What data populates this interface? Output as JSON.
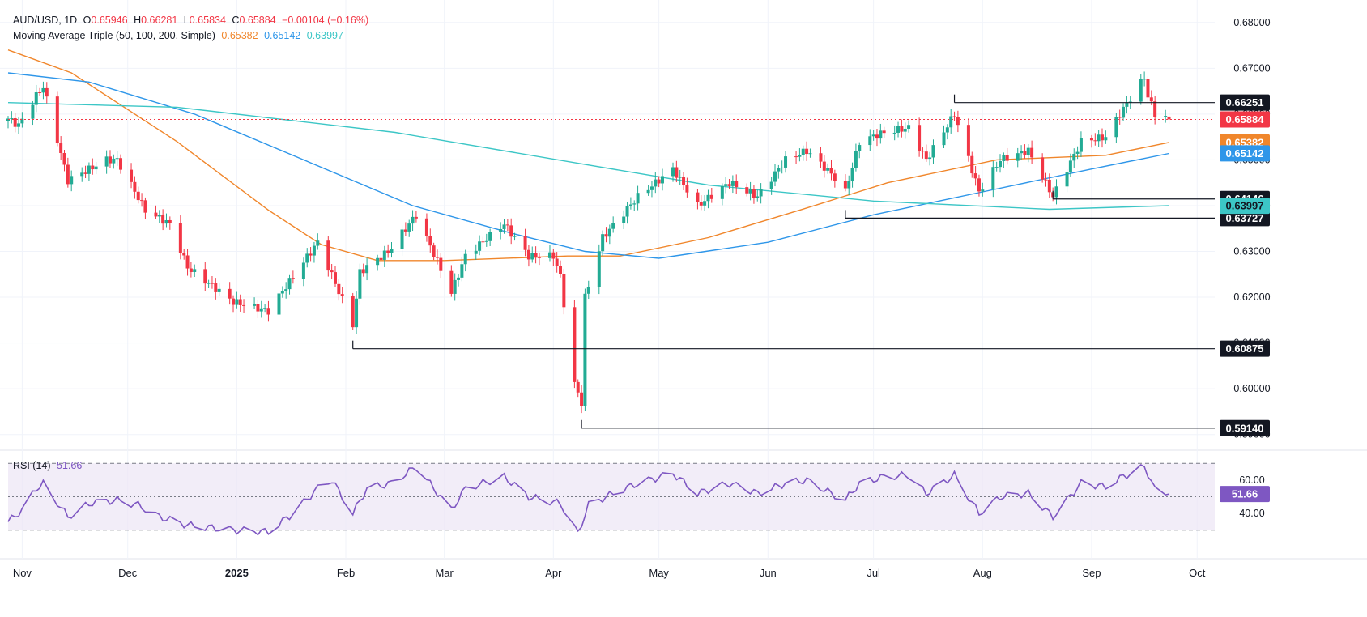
{
  "header": {
    "symbol": "AUD/USD, 1D",
    "ohlc": {
      "o_label": "O",
      "o": "0.65946",
      "h_label": "H",
      "h": "0.66281",
      "l_label": "L",
      "l": "0.65834",
      "c_label": "C",
      "c": "0.65884",
      "change": "−0.00104 (−0.16%)"
    },
    "ma_title": "Moving Average Triple (50, 100, 200, Simple)",
    "ma_values": [
      "0.65382",
      "0.65142",
      "0.63997"
    ],
    "rsi_title": "RSI (14)",
    "rsi_value": "51.66"
  },
  "colors": {
    "up": "#22ab94",
    "down": "#f23645",
    "ma50": "#f0862b",
    "ma100": "#2e96e9",
    "ma200": "#3cc6c6",
    "rsi": "#7e57c2",
    "rsi_band": "#ede7f6",
    "grid": "#f0f3fa",
    "axis_text": "#131722",
    "level": "#131722",
    "last_price": "#f23645"
  },
  "chart_data": [
    {
      "type": "candlestick",
      "title": "AUD/USD, 1D",
      "x_range": [
        "2024-10-28",
        "2025-10-06"
      ],
      "y_range": [
        0.588,
        0.6835
      ],
      "x_ticks": [
        {
          "date": "2024-11-01",
          "label": "Nov"
        },
        {
          "date": "2024-12-01",
          "label": "Dec"
        },
        {
          "date": "2025-01-01",
          "label": "2025"
        },
        {
          "date": "2025-02-01",
          "label": "Feb"
        },
        {
          "date": "2025-03-01",
          "label": "Mar"
        },
        {
          "date": "2025-04-01",
          "label": "Apr"
        },
        {
          "date": "2025-05-01",
          "label": "May"
        },
        {
          "date": "2025-06-01",
          "label": "Jun"
        },
        {
          "date": "2025-07-01",
          "label": "Jul"
        },
        {
          "date": "2025-08-01",
          "label": "Aug"
        },
        {
          "date": "2025-09-01",
          "label": "Sep"
        },
        {
          "date": "2025-10-01",
          "label": "Oct"
        }
      ],
      "y_ticks": [
        "0.68000",
        "0.67000",
        "0.66000",
        "0.65000",
        "0.64000",
        "0.63000",
        "0.62000",
        "0.61000",
        "0.60000",
        "0.59000"
      ],
      "anchors": [
        [
          "2024-10-28",
          0.659
        ],
        [
          "2024-10-31",
          0.6575
        ],
        [
          "2024-11-05",
          0.664
        ],
        [
          "2024-11-07",
          0.666
        ],
        [
          "2024-11-14",
          0.6455
        ],
        [
          "2024-11-25",
          0.65
        ],
        [
          "2024-11-28",
          0.65
        ],
        [
          "2024-12-06",
          0.639
        ],
        [
          "2024-12-13",
          0.636
        ],
        [
          "2024-12-18",
          0.6265
        ],
        [
          "2024-12-31",
          0.619
        ],
        [
          "2025-01-10",
          0.617
        ],
        [
          "2025-01-24",
          0.632
        ],
        [
          "2025-02-03",
          0.614
        ],
        [
          "2025-02-05",
          0.6255
        ],
        [
          "2025-02-13",
          0.63
        ],
        [
          "2025-02-19",
          0.636
        ],
        [
          "2025-02-21",
          0.638
        ],
        [
          "2025-03-03",
          0.621
        ],
        [
          "2025-03-07",
          0.629
        ],
        [
          "2025-03-18",
          0.636
        ],
        [
          "2025-03-25",
          0.629
        ],
        [
          "2025-04-01",
          0.629
        ],
        [
          "2025-04-03",
          0.6245
        ],
        [
          "2025-04-07",
          0.601
        ],
        [
          "2025-04-09",
          0.597
        ],
        [
          "2025-04-10",
          0.62
        ],
        [
          "2025-04-15",
          0.633
        ],
        [
          "2025-04-25",
          0.642
        ],
        [
          "2025-05-05",
          0.648
        ],
        [
          "2025-05-12",
          0.64
        ],
        [
          "2025-05-21",
          0.645
        ],
        [
          "2025-05-29",
          0.642
        ],
        [
          "2025-06-06",
          0.65
        ],
        [
          "2025-06-12",
          0.652
        ],
        [
          "2025-06-19",
          0.647
        ],
        [
          "2025-06-23",
          0.643
        ],
        [
          "2025-06-27",
          0.654
        ],
        [
          "2025-07-04",
          0.656
        ],
        [
          "2025-07-11",
          0.657
        ],
        [
          "2025-07-16",
          0.65
        ],
        [
          "2025-07-24",
          0.66
        ],
        [
          "2025-07-31",
          0.643
        ],
        [
          "2025-08-06",
          0.65
        ],
        [
          "2025-08-14",
          0.652
        ],
        [
          "2025-08-21",
          0.642
        ],
        [
          "2025-08-29",
          0.654
        ],
        [
          "2025-09-05",
          0.655
        ],
        [
          "2025-09-09",
          0.66
        ],
        [
          "2025-09-16",
          0.668
        ],
        [
          "2025-09-17",
          0.664
        ],
        [
          "2025-09-19",
          0.66
        ],
        [
          "2025-09-22",
          0.6595
        ],
        [
          "2025-09-23",
          0.6588
        ]
      ],
      "series": [
        {
          "name": "50",
          "points": [
            [
              "2024-10-28",
              0.674
            ],
            [
              "2024-11-15",
              0.669
            ],
            [
              "2024-12-15",
              0.654
            ],
            [
              "2025-01-10",
              0.639
            ],
            [
              "2025-01-25",
              0.6315
            ],
            [
              "2025-02-10",
              0.628
            ],
            [
              "2025-03-01",
              0.628
            ],
            [
              "2025-04-05",
              0.629
            ],
            [
              "2025-04-20",
              0.629
            ],
            [
              "2025-05-15",
              0.633
            ],
            [
              "2025-06-10",
              0.639
            ],
            [
              "2025-07-05",
              0.645
            ],
            [
              "2025-08-05",
              0.65
            ],
            [
              "2025-09-05",
              0.651
            ],
            [
              "2025-09-23",
              0.6538
            ]
          ]
        },
        {
          "name": "100",
          "points": [
            [
              "2024-10-28",
              0.669
            ],
            [
              "2024-11-20",
              0.667
            ],
            [
              "2024-12-20",
              0.66
            ],
            [
              "2025-01-20",
              0.65
            ],
            [
              "2025-02-20",
              0.64
            ],
            [
              "2025-03-20",
              0.634
            ],
            [
              "2025-04-10",
              0.63
            ],
            [
              "2025-05-01",
              0.6285
            ],
            [
              "2025-06-01",
              0.632
            ],
            [
              "2025-07-01",
              0.638
            ],
            [
              "2025-08-01",
              0.643
            ],
            [
              "2025-09-01",
              0.648
            ],
            [
              "2025-09-23",
              0.6514
            ]
          ]
        },
        {
          "name": "200",
          "points": [
            [
              "2024-10-28",
              0.6625
            ],
            [
              "2024-12-15",
              0.6615
            ],
            [
              "2025-02-15",
              0.656
            ],
            [
              "2025-04-10",
              0.649
            ],
            [
              "2025-05-15",
              0.6445
            ],
            [
              "2025-07-01",
              0.641
            ],
            [
              "2025-08-20",
              0.6392
            ],
            [
              "2025-09-23",
              0.64
            ]
          ]
        }
      ],
      "levels": [
        {
          "value": 0.66251,
          "label": "0.66251",
          "from": "2025-07-24"
        },
        {
          "value": 0.64146,
          "label": "0.64146",
          "from": "2025-08-21"
        },
        {
          "value": 0.63727,
          "label": "0.63727",
          "from": "2025-06-23"
        },
        {
          "value": 0.60875,
          "label": "0.60875",
          "from": "2025-02-03"
        },
        {
          "value": 0.5914,
          "label": "0.59140",
          "from": "2025-04-09"
        }
      ],
      "last_price": {
        "value": 0.65884,
        "label": "0.65884"
      },
      "ma_tags": [
        {
          "series": "50",
          "value": 0.65382,
          "label": "0.65382"
        },
        {
          "series": "100",
          "value": 0.65142,
          "label": "0.65142"
        },
        {
          "series": "200",
          "value": 0.63997,
          "label": "0.63997"
        }
      ]
    },
    {
      "type": "line",
      "title": "RSI (14)",
      "y_range": [
        25,
        75
      ],
      "y_ticks": [
        "60.00",
        "40.00"
      ],
      "band": [
        30,
        70
      ],
      "midline": 50,
      "points": [
        [
          "2024-10-28",
          35
        ],
        [
          "2024-11-01",
          42
        ],
        [
          "2024-11-05",
          55
        ],
        [
          "2024-11-07",
          58
        ],
        [
          "2024-11-14",
          38
        ],
        [
          "2024-11-20",
          46
        ],
        [
          "2024-11-28",
          48
        ],
        [
          "2024-12-04",
          45
        ],
        [
          "2024-12-10",
          38
        ],
        [
          "2024-12-18",
          33
        ],
        [
          "2024-12-31",
          30
        ],
        [
          "2025-01-10",
          29
        ],
        [
          "2025-01-17",
          40
        ],
        [
          "2025-01-24",
          55
        ],
        [
          "2025-01-28",
          60
        ],
        [
          "2025-02-03",
          40
        ],
        [
          "2025-02-07",
          55
        ],
        [
          "2025-02-14",
          58
        ],
        [
          "2025-02-21",
          68
        ],
        [
          "2025-03-03",
          42
        ],
        [
          "2025-03-07",
          55
        ],
        [
          "2025-03-18",
          62
        ],
        [
          "2025-03-25",
          50
        ],
        [
          "2025-04-03",
          46
        ],
        [
          "2025-04-08",
          28
        ],
        [
          "2025-04-11",
          45
        ],
        [
          "2025-04-18",
          52
        ],
        [
          "2025-04-25",
          58
        ],
        [
          "2025-05-05",
          64
        ],
        [
          "2025-05-12",
          52
        ],
        [
          "2025-05-21",
          58
        ],
        [
          "2025-05-29",
          52
        ],
        [
          "2025-06-06",
          58
        ],
        [
          "2025-06-12",
          60
        ],
        [
          "2025-06-19",
          52
        ],
        [
          "2025-06-23",
          48
        ],
        [
          "2025-06-27",
          58
        ],
        [
          "2025-07-04",
          62
        ],
        [
          "2025-07-11",
          63
        ],
        [
          "2025-07-16",
          52
        ],
        [
          "2025-07-24",
          63
        ],
        [
          "2025-07-31",
          40
        ],
        [
          "2025-08-06",
          50
        ],
        [
          "2025-08-14",
          52
        ],
        [
          "2025-08-21",
          38
        ],
        [
          "2025-08-29",
          58
        ],
        [
          "2025-09-05",
          56
        ],
        [
          "2025-09-09",
          61
        ],
        [
          "2025-09-16",
          68
        ],
        [
          "2025-09-17",
          64
        ],
        [
          "2025-09-19",
          54
        ],
        [
          "2025-09-23",
          51.66
        ]
      ]
    }
  ]
}
